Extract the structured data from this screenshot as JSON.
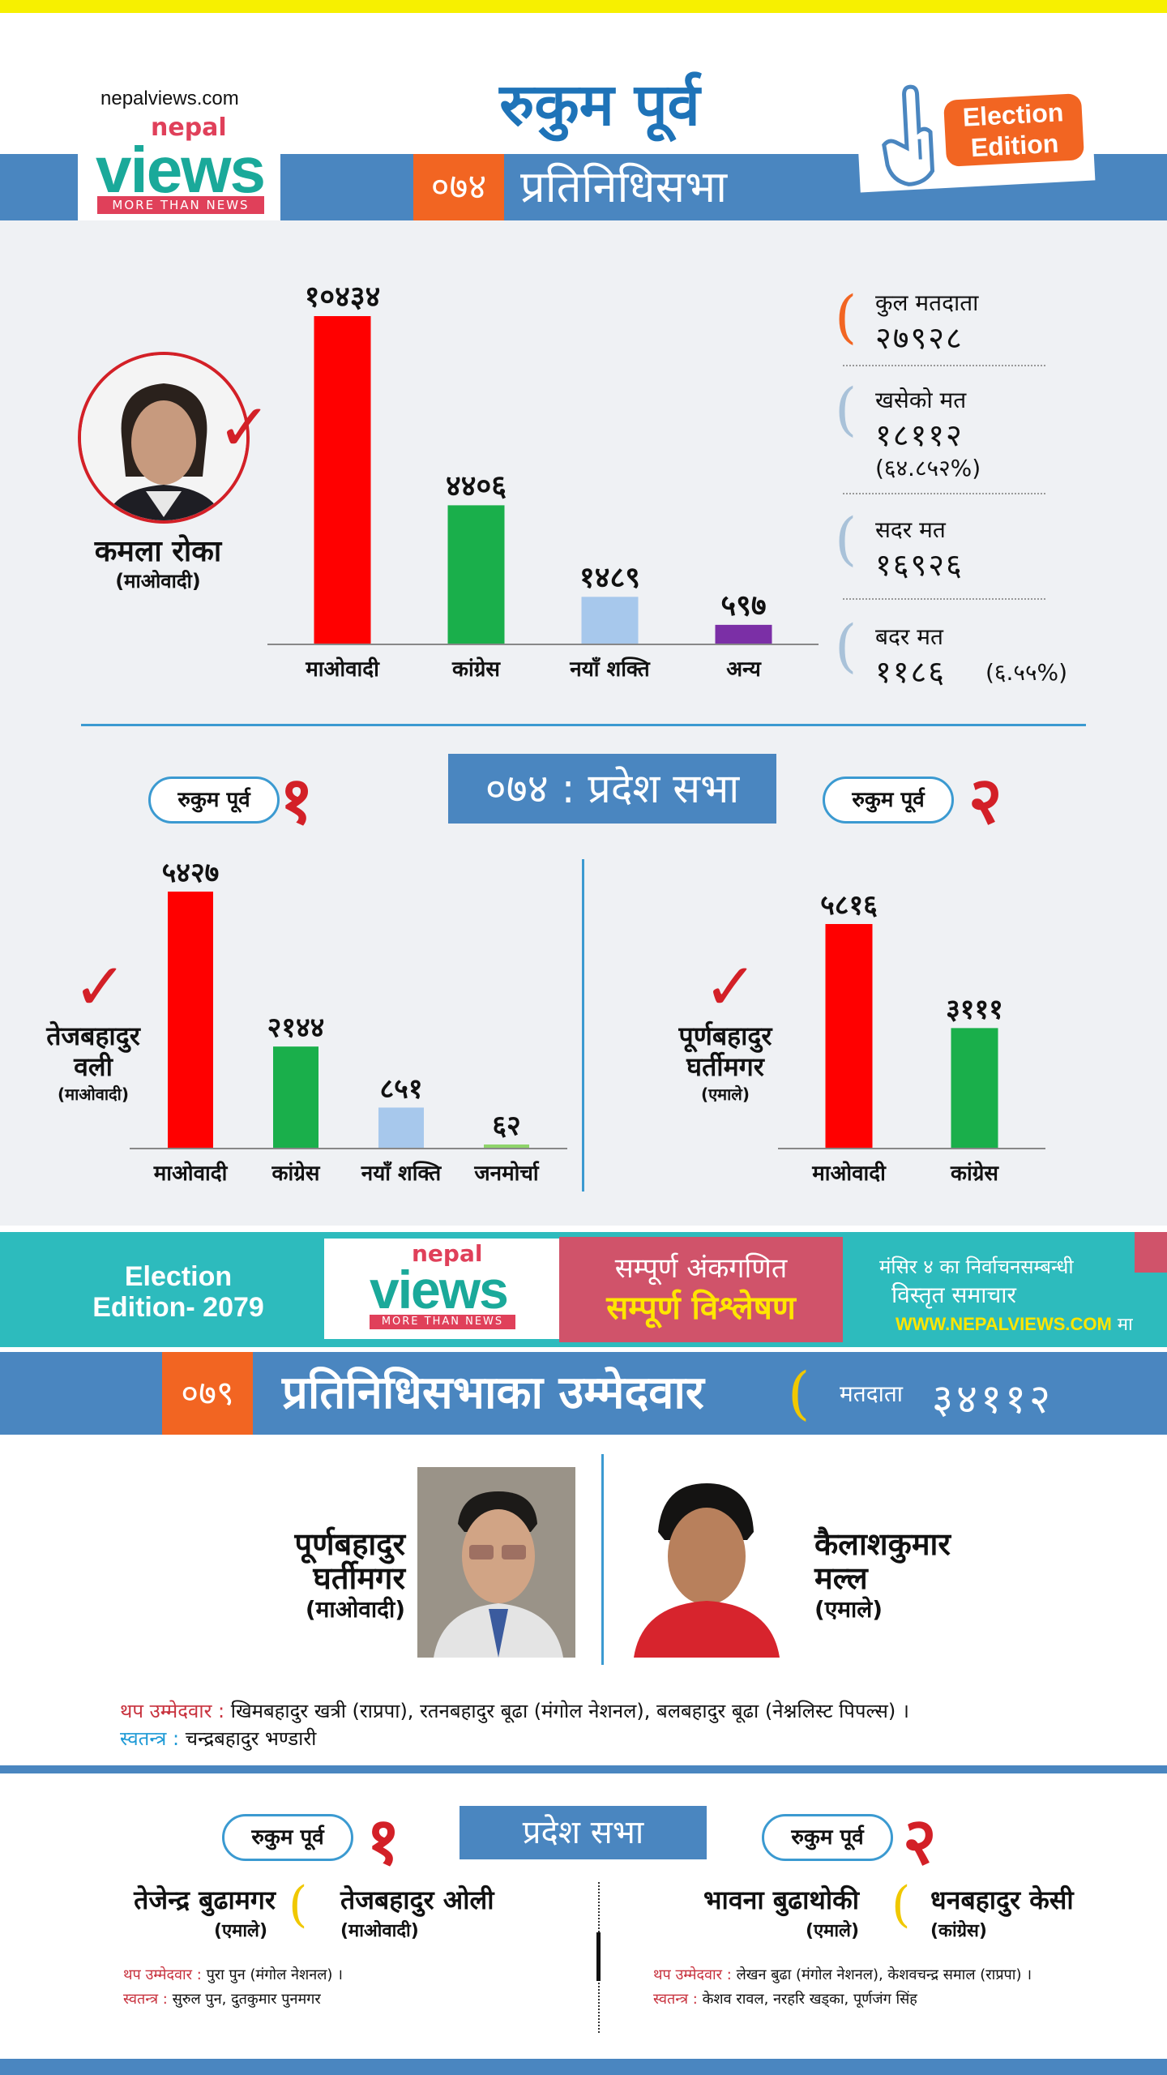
{
  "header": {
    "site": "nepalviews.com",
    "logo_nepal": "nepal",
    "logo_views": "views",
    "logo_tagline": "MORE THAN NEWS",
    "constituency": "रुकुम पूर्व",
    "year": "०७४",
    "house": "प्रतिनिधिसभा",
    "edition_badge_line1": "Election",
    "edition_badge_line2": "Edition"
  },
  "hor_2074": {
    "winner": {
      "name": "कमला रोका",
      "party": "(माओवादी)"
    },
    "chart_data": {
      "type": "bar",
      "categories": [
        "माओवादी",
        "कांग्रेस",
        "नयाँ शक्ति",
        "अन्य"
      ],
      "values": [
        10434,
        4406,
        1489,
        597
      ],
      "value_labels": [
        "१०४३४",
        "४४०६",
        "१४८९",
        "५९७"
      ],
      "colors": [
        "#ff0000",
        "#1aaf4b",
        "#a7c8ec",
        "#7b2fa6"
      ],
      "ylim": [
        0,
        10434
      ]
    },
    "stats": [
      {
        "label": "कुल मतदाता",
        "value": "२७९२८",
        "extra": "",
        "accent": "#f26522"
      },
      {
        "label": "खसेको मत",
        "value": "१८११२",
        "extra": "(६४.८५२%)",
        "accent": "#a9c2d9"
      },
      {
        "label": "सदर मत",
        "value": "१६९२६",
        "extra": "",
        "accent": "#a9c2d9"
      },
      {
        "label": "बदर मत",
        "value": "११८६",
        "extra": "(६.५५%)",
        "accent": "#a9c2d9"
      }
    ]
  },
  "province_2074": {
    "title": "०७४ : प्रदेश सभा",
    "pill_label": "रुकुम पूर्व",
    "seats": [
      {
        "number": "१",
        "winner_name_line1": "तेजबहादुर",
        "winner_name_line2": "वली",
        "winner_party": "(माओवादी)",
        "chart_data": {
          "type": "bar",
          "categories": [
            "माओवादी",
            "कांग्रेस",
            "नयाँ शक्ति",
            "जनमोर्चा"
          ],
          "values": [
            5427,
            2144,
            851,
            62
          ],
          "value_labels": [
            "५४२७",
            "२१४४",
            "८५१",
            "६२"
          ],
          "colors": [
            "#ff0000",
            "#1aaf4b",
            "#a7c8ec",
            "#8fd46a"
          ],
          "ylim": [
            0,
            5427
          ]
        }
      },
      {
        "number": "२",
        "winner_name_line1": "पूर्णबहादुर",
        "winner_name_line2": "घर्तीमगर",
        "winner_party": "(एमाले)",
        "chart_data": {
          "type": "bar",
          "categories": [
            "माओवादी",
            "कांग्रेस"
          ],
          "values": [
            5816,
            3111
          ],
          "value_labels": [
            "५८१६",
            "३१११"
          ],
          "colors": [
            "#ff0000",
            "#1aaf4b"
          ],
          "ylim": [
            0,
            5816
          ]
        }
      }
    ]
  },
  "banner": {
    "edition": "Election Edition- 2079",
    "edition_line1": "Election",
    "edition_line2": "Edition- 2079",
    "logo_nepal": "nepal",
    "logo_views": "views",
    "logo_tagline": "MORE THAN NEWS",
    "tag1": "सम्पूर्ण अंकगणित",
    "tag2": "सम्पूर्ण विश्लेषण",
    "right1": "मंसिर ४ का निर्वाचनसम्बन्धी",
    "right2": "विस्तृत समाचार",
    "right3": "WWW.NEPALVIEWS.COM",
    "right3_suffix": "मा"
  },
  "hor_2079": {
    "year": "०७९",
    "title": "प्रतिनिधिसभाका उम्मेदवार",
    "voters_label": "मतदाता",
    "voters_value": "३४११२",
    "candidates": [
      {
        "name_line1": "पूर्णबहादुर",
        "name_line2": "घर्तीमगर",
        "party": "(माओवादी)"
      },
      {
        "name_line1": "कैलाशकुमार",
        "name_line2": "मल्ल",
        "party": "(एमाले)"
      }
    ],
    "other_label": "थप उम्मेदवार :",
    "other_text": "खिमबहादुर खत्री (राप्रपा), रतनबहादुर बूढा (मंगोल नेशनल), बलबहादुर बूढा (नेश्नलिस्ट पिपल्स) ।",
    "independent_label": "स्वतन्त्र :",
    "independent_text": "चन्द्रबहादुर भण्डारी"
  },
  "province_2079": {
    "title": "प्रदेश सभा",
    "pill_label": "रुकुम पूर्व",
    "seats": [
      {
        "number": "१",
        "candidates": [
          {
            "name": "तेजेन्द्र बुढामगर",
            "party": "(एमाले)"
          },
          {
            "name": "तेजबहादुर ओली",
            "party": "(माओवादी)"
          }
        ],
        "other_label": "थप उम्मेदवार :",
        "other_text": "पुरा पुन (मंगोल नेशनल) ।",
        "independent_label": "स्वतन्त्र :",
        "independent_text": "सुरुल पुन, दुतकुमार पुनमगर"
      },
      {
        "number": "२",
        "candidates": [
          {
            "name": "भावना बुढाथोकी",
            "party": "(एमाले)"
          },
          {
            "name": "धनबहादुर केसी",
            "party": "(कांग्रेस)"
          }
        ],
        "other_label": "थप उम्मेदवार :",
        "other_text": "लेखन बुढा (मंगोल नेशनल), केशवचन्द्र समाल (राप्रपा) ।",
        "independent_label": "स्वतन्त्र :",
        "independent_text": "केशव रावल, नरहरि खड्का, पूर्णजंग सिंह"
      }
    ]
  }
}
